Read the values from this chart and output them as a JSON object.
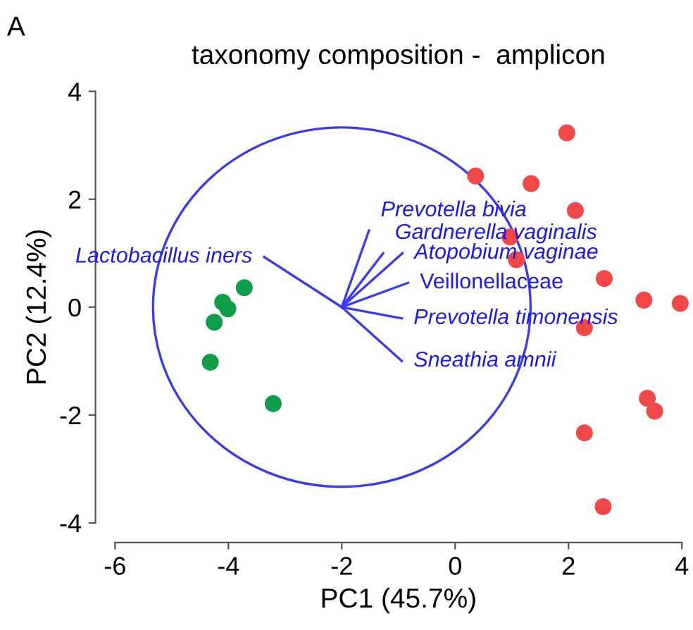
{
  "chart_data": {
    "type": "scatter",
    "title": "taxonomy composition -  amplicon",
    "xlabel": "PC1 (45.7%)",
    "ylabel": "PC2 (12.4%)",
    "xlim": [
      -6,
      4
    ],
    "ylim": [
      -4,
      4
    ],
    "xticks": [
      -6,
      -4,
      -2,
      0,
      2,
      4
    ],
    "yticks": [
      -4,
      -2,
      0,
      2,
      4
    ],
    "legend": false,
    "grid": false,
    "series": [
      {
        "marker": "circle",
        "color": "#f04848",
        "x": [
          1.97,
          0.36,
          1.34,
          2.12,
          0.97,
          1.08,
          2.63,
          3.33,
          3.97,
          2.28,
          3.39,
          3.52,
          2.28,
          2.61
        ],
        "values": [
          3.23,
          2.43,
          2.29,
          1.79,
          1.3,
          0.88,
          0.53,
          0.13,
          0.07,
          -0.38,
          -1.69,
          -1.93,
          -2.33,
          -3.7
        ]
      },
      {
        "marker": "circle",
        "color": "#0f9d48",
        "x": [
          -3.72,
          -4.1,
          -4.01,
          -4.25,
          -4.32,
          -3.21
        ],
        "values": [
          0.36,
          0.09,
          -0.03,
          -0.28,
          -1.02,
          -1.79
        ]
      },
      {
        "type": "line",
        "name": "Lactobacillus iners",
        "color": "#3a3af0",
        "x": [
          -3.37,
          -2
        ],
        "values": [
          0.93,
          0
        ]
      },
      {
        "type": "line",
        "name": "Prevotella bivia",
        "color": "#3a3af0",
        "x": [
          -2,
          -1.52
        ],
        "values": [
          0,
          1.42
        ]
      },
      {
        "type": "line",
        "name": "Gardnerella vaginalis",
        "color": "#3a3af0",
        "x": [
          -2,
          -1.27
        ],
        "values": [
          0,
          1.0
        ]
      },
      {
        "type": "line",
        "name": "Atopobium vaginae",
        "color": "#3a3af0",
        "x": [
          -2,
          -0.93
        ],
        "values": [
          0,
          1.0
        ]
      },
      {
        "type": "line",
        "name": "Veillonellaceae",
        "color": "#3a3af0",
        "x": [
          -2,
          -0.83
        ],
        "values": [
          0,
          0.45
        ]
      },
      {
        "type": "line",
        "name": "Prevotella timonensis",
        "color": "#3a3af0",
        "x": [
          -2,
          -0.94
        ],
        "values": [
          0,
          -0.21
        ]
      },
      {
        "type": "line",
        "name": "Sneathia amnii",
        "color": "#3a3af0",
        "x": [
          -2,
          -0.94
        ],
        "values": [
          0,
          -1.0
        ]
      }
    ],
    "annotations": [
      "A"
    ]
  }
}
